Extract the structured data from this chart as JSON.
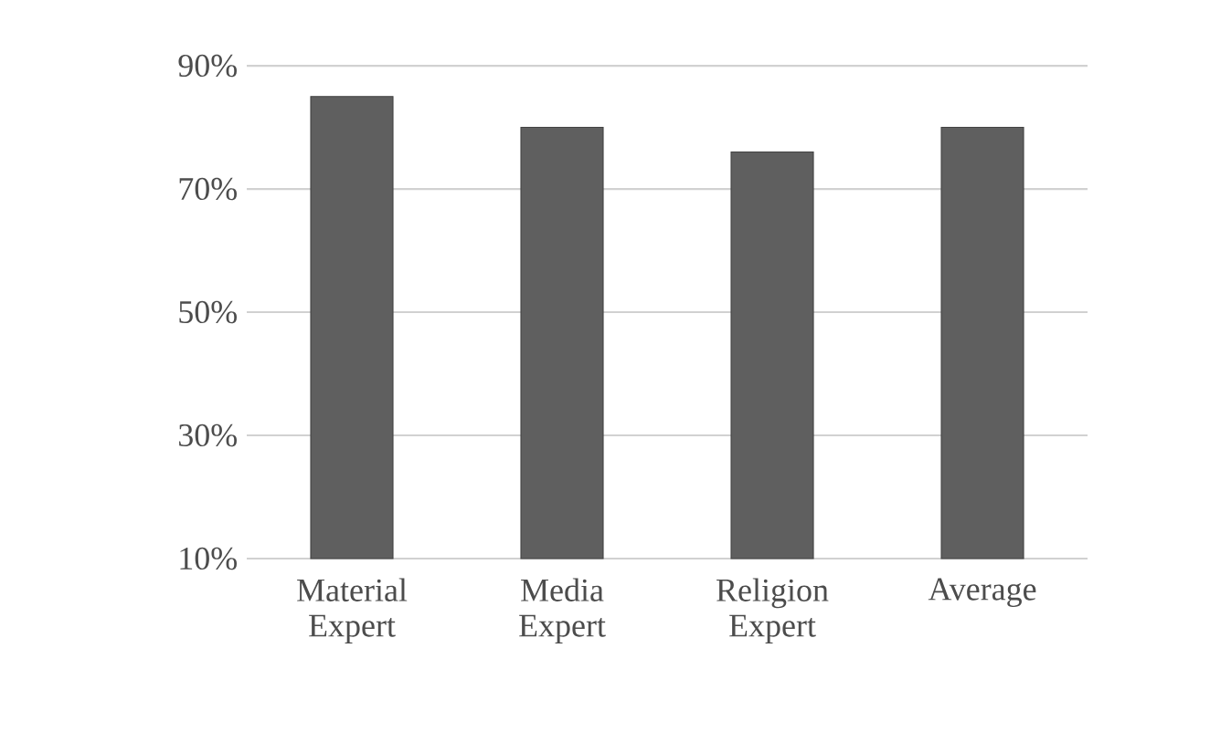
{
  "chart_data": {
    "type": "bar",
    "categories": [
      "Material Expert",
      "Media Expert",
      "Religion Expert",
      "Average"
    ],
    "values": [
      85,
      80,
      76,
      80
    ],
    "color": "#5f5f5f",
    "ylim": [
      10,
      90
    ],
    "yticks": [
      {
        "value": 10,
        "label": "10%"
      },
      {
        "value": 30,
        "label": "30%"
      },
      {
        "value": 50,
        "label": "50%"
      },
      {
        "value": 70,
        "label": "70%"
      },
      {
        "value": 90,
        "label": "90%"
      }
    ],
    "grid": "y"
  }
}
